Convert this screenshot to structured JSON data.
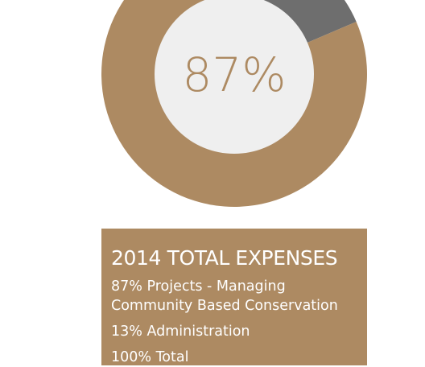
{
  "chart_data": {
    "type": "pie",
    "style": "donut",
    "center_label": "87%",
    "slices": [
      {
        "label": "Projects - Managing Community Based Conservation",
        "value": 87,
        "color": "#ad8a62"
      },
      {
        "label": "Administration",
        "value": 13,
        "color": "#6e6e6e"
      }
    ],
    "legend_placement": "below",
    "grid": false
  },
  "colors": {
    "accent": "#ad8a62",
    "secondary": "#6e6e6e",
    "hole": "#efefef",
    "card_text": "#ffffff"
  },
  "card": {
    "title": "2014 TOTAL EXPENSES",
    "projects_line": "87% Projects - Managing Community Based Conservation",
    "admin_line": "13% Administration",
    "total_line": "100% Total"
  }
}
